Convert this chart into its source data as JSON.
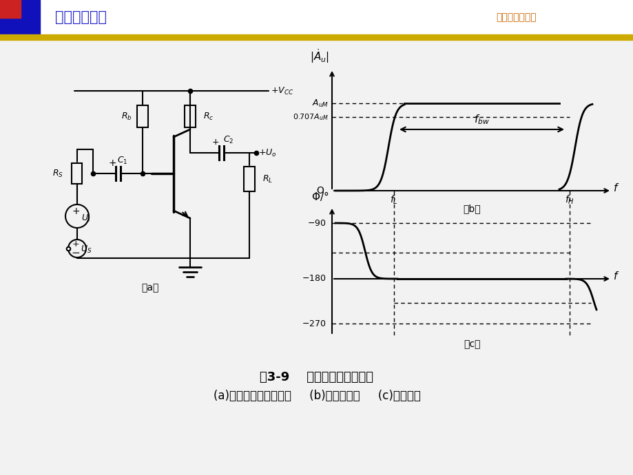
{
  "bg_color": "#ffffff",
  "header_text": "模拟电子技术",
  "header_text_color": "#2222cc",
  "header_right_text": "哈尔滨工程大学",
  "header_right_color": "#cc6600",
  "gold_bar_color": "#ccaa00",
  "title_text": "图3-9    共射电路的频率响应",
  "subtitle_text": "(a)共射基本放大电路；     (b)幅频特性；     (c)相频特性",
  "corner_blue_color": "#1111bb",
  "corner_red_color": "#cc2222"
}
